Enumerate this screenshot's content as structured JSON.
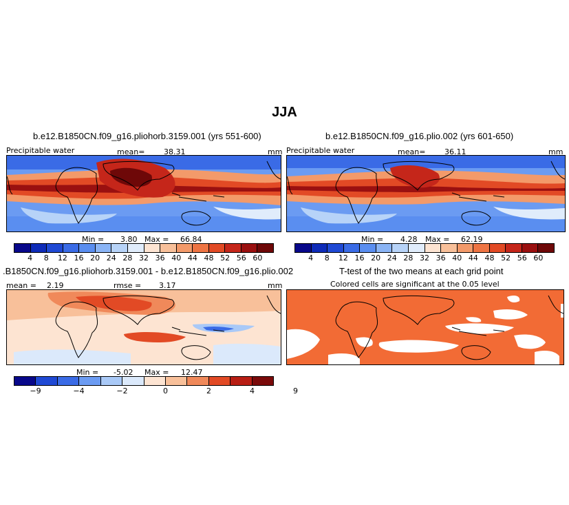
{
  "title": "JJA",
  "panels": [
    {
      "title": "b.e12.B1850CN.f09_g16.pliohorb.3159.001 (yrs 551-600)",
      "left_label": "Precipitable water",
      "stat_label": "mean=",
      "stat_value": "38.31",
      "units": "mm",
      "min_label": "Min =",
      "min_value": "3.80",
      "max_label": "Max =",
      "max_value": "66.84"
    },
    {
      "title": "b.e12.B1850CN.f09_g16.plio.002 (yrs 601-650)",
      "left_label": "Precipitable water",
      "stat_label": "mean=",
      "stat_value": "36.11",
      "units": "mm",
      "min_label": "Min =",
      "min_value": "4.28",
      "max_label": "Max =",
      "max_value": "62.19"
    },
    {
      "title": ".B1850CN.f09_g16.pliohorb.3159.001 - b.e12.B1850CN.f09_g16.plio.002",
      "left_label": "mean =",
      "left_value": "2.19",
      "stat_label": "rmse =",
      "stat_value": "3.17",
      "units": "mm",
      "min_label": "Min =",
      "min_value": "-5.02",
      "max_label": "Max =",
      "max_value": "12.47"
    },
    {
      "title": "T-test of the two means at each grid point",
      "subtitle": "Colored cells are significant at the 0.05 level"
    }
  ],
  "colorbar_main": {
    "colors": [
      "#08088a",
      "#0e2bb8",
      "#1f49d4",
      "#3a6be6",
      "#5a8ef0",
      "#8ab4f5",
      "#b7d3f8",
      "#e0ecfb",
      "#fde4d2",
      "#f8c09a",
      "#f39a6a",
      "#ee7443",
      "#e24a25",
      "#c5261a",
      "#9a1010",
      "#6e0808"
    ],
    "ticks": [
      "4",
      "8",
      "12",
      "16",
      "20",
      "24",
      "28",
      "32",
      "36",
      "40",
      "44",
      "48",
      "52",
      "56",
      "60"
    ]
  },
  "colorbar_diff": {
    "colors": [
      "#08088a",
      "#1f49d4",
      "#3a6be6",
      "#6b9bf2",
      "#a9c9f7",
      "#dbe9fb",
      "#fde4d2",
      "#f8c09a",
      "#f0895a",
      "#e24a25",
      "#b81e14",
      "#7a0a0a"
    ],
    "ticks": [
      "−9",
      "−4",
      "−2",
      "0",
      "2",
      "4",
      "9"
    ]
  },
  "colors": {
    "significant": "#f26b35",
    "land_outline": "#000000"
  }
}
